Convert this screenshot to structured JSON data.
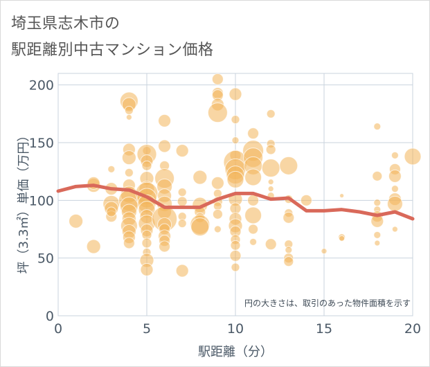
{
  "title_line1": "埼玉県志木市の",
  "title_line2": "駅距離別中古マンション価格",
  "chart_data": {
    "type": "scatter",
    "title": "埼玉県志木市の 駅距離別中古マンション価格",
    "xlabel": "駅距離（分）",
    "ylabel": "坪（3.3㎡）単価（万円）",
    "xlim": [
      0,
      20
    ],
    "ylim": [
      0,
      210
    ],
    "xticks": [
      0,
      5,
      10,
      15,
      20
    ],
    "yticks": [
      0,
      50,
      100,
      150,
      200
    ],
    "grid": true,
    "annotation": "円の大きさは、取引のあった物件面積を示す",
    "colors": {
      "bubble": "#f2b45a",
      "line": "#d9695a",
      "grid": "#c8d3de"
    },
    "points": [
      {
        "x": 1,
        "y": 82,
        "s": 10
      },
      {
        "x": 2,
        "y": 60,
        "s": 10
      },
      {
        "x": 2,
        "y": 113,
        "s": 10
      },
      {
        "x": 2,
        "y": 115,
        "s": 9
      },
      {
        "x": 3,
        "y": 127,
        "s": 5
      },
      {
        "x": 3,
        "y": 110,
        "s": 9
      },
      {
        "x": 3,
        "y": 97,
        "s": 12
      },
      {
        "x": 3,
        "y": 93,
        "s": 10
      },
      {
        "x": 3,
        "y": 86,
        "s": 8
      },
      {
        "x": 3,
        "y": 90,
        "s": 7
      },
      {
        "x": 4,
        "y": 186,
        "s": 13
      },
      {
        "x": 4,
        "y": 183,
        "s": 10
      },
      {
        "x": 4,
        "y": 178,
        "s": 6
      },
      {
        "x": 4,
        "y": 172,
        "s": 4
      },
      {
        "x": 4,
        "y": 144,
        "s": 9
      },
      {
        "x": 4,
        "y": 137,
        "s": 10
      },
      {
        "x": 4,
        "y": 124,
        "s": 6
      },
      {
        "x": 4,
        "y": 113,
        "s": 9
      },
      {
        "x": 4,
        "y": 105,
        "s": 12
      },
      {
        "x": 4,
        "y": 100,
        "s": 15
      },
      {
        "x": 4,
        "y": 95,
        "s": 13
      },
      {
        "x": 4,
        "y": 90,
        "s": 11
      },
      {
        "x": 4,
        "y": 84,
        "s": 10
      },
      {
        "x": 4,
        "y": 78,
        "s": 12
      },
      {
        "x": 4,
        "y": 73,
        "s": 10
      },
      {
        "x": 4,
        "y": 68,
        "s": 9
      },
      {
        "x": 4,
        "y": 63,
        "s": 8
      },
      {
        "x": 5,
        "y": 143,
        "s": 6
      },
      {
        "x": 5,
        "y": 140,
        "s": 14
      },
      {
        "x": 5,
        "y": 134,
        "s": 9
      },
      {
        "x": 5,
        "y": 130,
        "s": 7
      },
      {
        "x": 5,
        "y": 119,
        "s": 10
      },
      {
        "x": 5,
        "y": 110,
        "s": 11
      },
      {
        "x": 5,
        "y": 106,
        "s": 16
      },
      {
        "x": 5,
        "y": 102,
        "s": 14
      },
      {
        "x": 5,
        "y": 97,
        "s": 13
      },
      {
        "x": 5,
        "y": 92,
        "s": 12
      },
      {
        "x": 5,
        "y": 86,
        "s": 10
      },
      {
        "x": 5,
        "y": 80,
        "s": 12
      },
      {
        "x": 5,
        "y": 74,
        "s": 9
      },
      {
        "x": 5,
        "y": 70,
        "s": 7
      },
      {
        "x": 5,
        "y": 63,
        "s": 7
      },
      {
        "x": 5,
        "y": 55,
        "s": 6
      },
      {
        "x": 5,
        "y": 48,
        "s": 10
      },
      {
        "x": 5,
        "y": 40,
        "s": 9
      },
      {
        "x": 6,
        "y": 169,
        "s": 9
      },
      {
        "x": 6,
        "y": 147,
        "s": 9
      },
      {
        "x": 6,
        "y": 130,
        "s": 7
      },
      {
        "x": 6,
        "y": 119,
        "s": 14
      },
      {
        "x": 6,
        "y": 112,
        "s": 11
      },
      {
        "x": 6,
        "y": 104,
        "s": 10
      },
      {
        "x": 6,
        "y": 97,
        "s": 11
      },
      {
        "x": 6,
        "y": 90,
        "s": 10
      },
      {
        "x": 6,
        "y": 84,
        "s": 18
      },
      {
        "x": 6,
        "y": 79,
        "s": 10
      },
      {
        "x": 6,
        "y": 75,
        "s": 8
      },
      {
        "x": 6,
        "y": 69,
        "s": 9
      },
      {
        "x": 6,
        "y": 65,
        "s": 8
      },
      {
        "x": 6,
        "y": 60,
        "s": 8
      },
      {
        "x": 7,
        "y": 143,
        "s": 9
      },
      {
        "x": 7,
        "y": 107,
        "s": 6
      },
      {
        "x": 7,
        "y": 99,
        "s": 7
      },
      {
        "x": 7,
        "y": 86,
        "s": 6
      },
      {
        "x": 7,
        "y": 80,
        "s": 6
      },
      {
        "x": 7,
        "y": 39,
        "s": 9
      },
      {
        "x": 8,
        "y": 120,
        "s": 10
      },
      {
        "x": 8,
        "y": 96,
        "s": 11
      },
      {
        "x": 8,
        "y": 90,
        "s": 8
      },
      {
        "x": 8,
        "y": 85,
        "s": 7
      },
      {
        "x": 8,
        "y": 79,
        "s": 14
      },
      {
        "x": 8,
        "y": 77,
        "s": 13
      },
      {
        "x": 9,
        "y": 205,
        "s": 8
      },
      {
        "x": 9,
        "y": 193,
        "s": 8
      },
      {
        "x": 9,
        "y": 191,
        "s": 8
      },
      {
        "x": 9,
        "y": 183,
        "s": 9
      },
      {
        "x": 9,
        "y": 176,
        "s": 14
      },
      {
        "x": 9,
        "y": 115,
        "s": 9
      },
      {
        "x": 9,
        "y": 106,
        "s": 6
      },
      {
        "x": 9,
        "y": 99,
        "s": 7
      },
      {
        "x": 9,
        "y": 95,
        "s": 6
      },
      {
        "x": 9,
        "y": 88,
        "s": 7
      },
      {
        "x": 9,
        "y": 75,
        "s": 5
      },
      {
        "x": 10,
        "y": 192,
        "s": 9
      },
      {
        "x": 10,
        "y": 170,
        "s": 6
      },
      {
        "x": 10,
        "y": 152,
        "s": 5
      },
      {
        "x": 10,
        "y": 139,
        "s": 8
      },
      {
        "x": 10,
        "y": 133,
        "s": 17
      },
      {
        "x": 10,
        "y": 127,
        "s": 15
      },
      {
        "x": 10,
        "y": 122,
        "s": 13
      },
      {
        "x": 10,
        "y": 118,
        "s": 12
      },
      {
        "x": 10,
        "y": 101,
        "s": 10
      },
      {
        "x": 10,
        "y": 93,
        "s": 8
      },
      {
        "x": 10,
        "y": 84,
        "s": 9
      },
      {
        "x": 10,
        "y": 78,
        "s": 10
      },
      {
        "x": 10,
        "y": 73,
        "s": 8
      },
      {
        "x": 10,
        "y": 66,
        "s": 7
      },
      {
        "x": 10,
        "y": 61,
        "s": 7
      },
      {
        "x": 10,
        "y": 52,
        "s": 8
      },
      {
        "x": 10,
        "y": 42,
        "s": 6
      },
      {
        "x": 11,
        "y": 158,
        "s": 8
      },
      {
        "x": 11,
        "y": 143,
        "s": 15
      },
      {
        "x": 11,
        "y": 137,
        "s": 14
      },
      {
        "x": 11,
        "y": 130,
        "s": 13
      },
      {
        "x": 11,
        "y": 120,
        "s": 12
      },
      {
        "x": 11,
        "y": 100,
        "s": 8
      },
      {
        "x": 11,
        "y": 87,
        "s": 12
      },
      {
        "x": 11,
        "y": 75,
        "s": 7
      },
      {
        "x": 11,
        "y": 64,
        "s": 5
      },
      {
        "x": 12,
        "y": 175,
        "s": 6
      },
      {
        "x": 12,
        "y": 149,
        "s": 6
      },
      {
        "x": 12,
        "y": 144,
        "s": 7
      },
      {
        "x": 12,
        "y": 128,
        "s": 13
      },
      {
        "x": 12,
        "y": 116,
        "s": 4
      },
      {
        "x": 12,
        "y": 110,
        "s": 4
      },
      {
        "x": 12,
        "y": 104,
        "s": 5
      },
      {
        "x": 12,
        "y": 62,
        "s": 8
      },
      {
        "x": 13,
        "y": 130,
        "s": 13
      },
      {
        "x": 13,
        "y": 101,
        "s": 6
      },
      {
        "x": 13,
        "y": 89,
        "s": 6
      },
      {
        "x": 13,
        "y": 85,
        "s": 8
      },
      {
        "x": 13,
        "y": 62,
        "s": 6
      },
      {
        "x": 13,
        "y": 57,
        "s": 5
      },
      {
        "x": 13,
        "y": 50,
        "s": 7
      },
      {
        "x": 13,
        "y": 47,
        "s": 7
      },
      {
        "x": 14,
        "y": 100,
        "s": 8
      },
      {
        "x": 15,
        "y": 56,
        "s": 4
      },
      {
        "x": 16,
        "y": 68,
        "s": 5
      },
      {
        "x": 16,
        "y": 67,
        "s": 4
      },
      {
        "x": 16,
        "y": 104,
        "s": 3
      },
      {
        "x": 18,
        "y": 164,
        "s": 5
      },
      {
        "x": 18,
        "y": 121,
        "s": 7
      },
      {
        "x": 18,
        "y": 98,
        "s": 5
      },
      {
        "x": 18,
        "y": 92,
        "s": 5
      },
      {
        "x": 18,
        "y": 86,
        "s": 8
      },
      {
        "x": 18,
        "y": 82,
        "s": 9
      },
      {
        "x": 18,
        "y": 70,
        "s": 5
      },
      {
        "x": 18,
        "y": 63,
        "s": 4
      },
      {
        "x": 19,
        "y": 139,
        "s": 5
      },
      {
        "x": 19,
        "y": 127,
        "s": 8
      },
      {
        "x": 19,
        "y": 121,
        "s": 9
      },
      {
        "x": 19,
        "y": 110,
        "s": 5
      },
      {
        "x": 19,
        "y": 101,
        "s": 9
      },
      {
        "x": 19,
        "y": 97,
        "s": 11
      },
      {
        "x": 19,
        "y": 75,
        "s": 4
      },
      {
        "x": 20,
        "y": 138,
        "s": 12
      }
    ],
    "trend": {
      "x": [
        0,
        1,
        2,
        3,
        4,
        5,
        6,
        7,
        8,
        9,
        10,
        11,
        12,
        13,
        14,
        15,
        16,
        17,
        18,
        19,
        20
      ],
      "y": [
        108,
        112,
        113,
        110,
        109,
        103,
        94,
        94,
        94,
        101,
        106,
        106,
        101,
        102,
        91,
        91,
        92,
        90,
        87,
        90,
        84
      ]
    }
  }
}
